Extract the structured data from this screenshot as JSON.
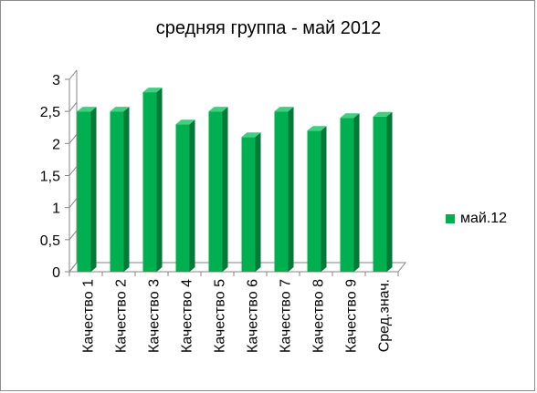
{
  "chart_data": {
    "type": "bar",
    "title": "средняя группа - май 2012",
    "categories": [
      "Качество 1",
      "Качество 2",
      "Качество 3",
      "Качество 4",
      "Качество 5",
      "Качество 6",
      "Качество 7",
      "Качество 8",
      "Качество 9",
      "Сред.знач."
    ],
    "series": [
      {
        "name": "май.12",
        "values": [
          2.5,
          2.5,
          2.8,
          2.3,
          2.5,
          2.1,
          2.5,
          2.2,
          2.4,
          2.42
        ]
      }
    ],
    "yticks": [
      "0",
      "0,5",
      "1",
      "1,5",
      "2",
      "2,5",
      "3"
    ],
    "ylim": [
      0,
      3
    ],
    "grid": false,
    "legend_position": "right",
    "colors": {
      "bar_front": "#00b050",
      "bar_side": "#007a37",
      "bar_top": "#3fd07f"
    }
  }
}
